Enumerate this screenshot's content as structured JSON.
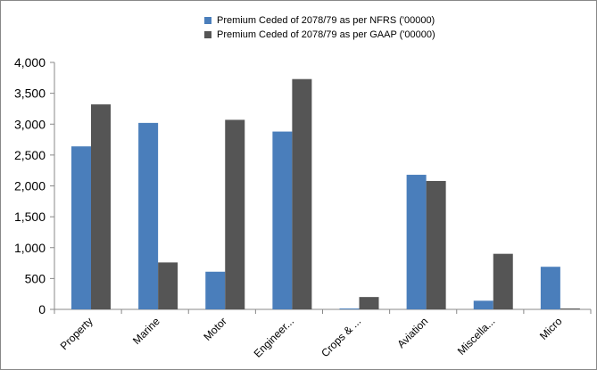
{
  "chart_data": {
    "type": "bar",
    "categories": [
      "Property",
      "Marine",
      "Motor",
      "Engineer...",
      "Crops & ...",
      "Aviation",
      "Miscella...",
      "Micro"
    ],
    "series": [
      {
        "name": "Premium Ceded of 2078/79 as per NFRS ('00000)",
        "color": "#4a7ebb",
        "values": [
          2640,
          3020,
          610,
          2880,
          5,
          2180,
          140,
          690
        ]
      },
      {
        "name": "Premium Ceded of 2078/79 as per GAAP ('00000)",
        "color": "#555555",
        "values": [
          3320,
          760,
          3070,
          3730,
          200,
          2080,
          900,
          10
        ]
      }
    ],
    "ylim": [
      0,
      4000
    ],
    "yticks": [
      "0",
      "500",
      "1,000",
      "1,500",
      "2,000",
      "2,500",
      "3,000",
      "3,500",
      "4,000"
    ],
    "ytick_values": [
      0,
      500,
      1000,
      1500,
      2000,
      2500,
      3000,
      3500,
      4000
    ],
    "legend_position": "top-center",
    "grid": false
  }
}
